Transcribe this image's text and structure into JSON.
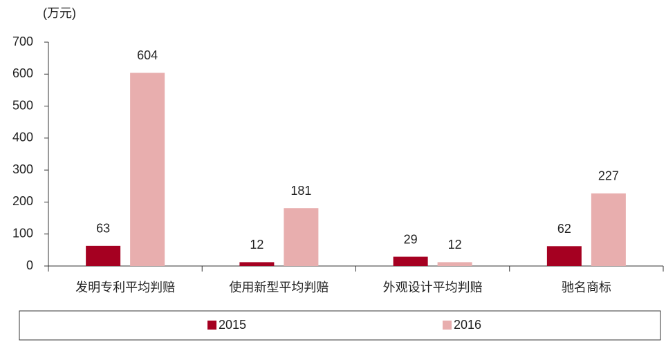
{
  "chart_data": {
    "type": "bar",
    "unit_label": "(万元)",
    "categories": [
      "发明专利平均判赔",
      "使用新型平均判赔",
      "外观设计平均判赔",
      "驰名商标"
    ],
    "series": [
      {
        "name": "2015",
        "color": "#a50021",
        "values": [
          63,
          12,
          29,
          62
        ]
      },
      {
        "name": "2016",
        "color": "#e8aeae",
        "values": [
          604,
          181,
          12,
          227
        ]
      }
    ],
    "ylim": [
      0,
      700
    ],
    "yticks": [
      0,
      100,
      200,
      300,
      400,
      500,
      600,
      700
    ],
    "grid": false,
    "legend": "bottom"
  }
}
